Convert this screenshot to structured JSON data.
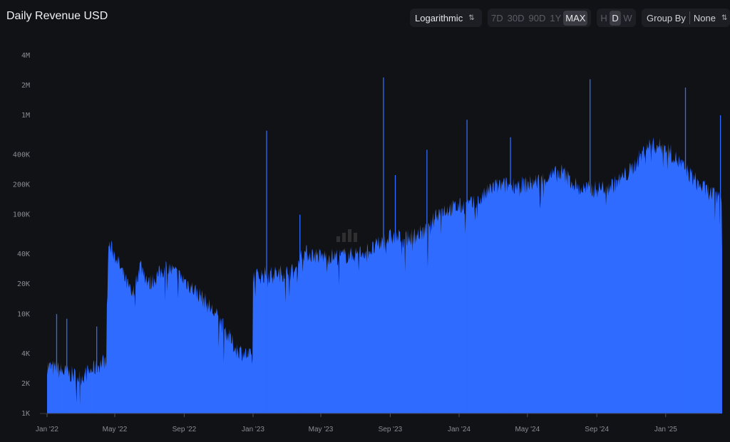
{
  "header": {
    "title": "Daily Revenue USD"
  },
  "controls": {
    "scale": {
      "value": "Logarithmic",
      "icon": "updown-chevron-icon"
    },
    "ranges": [
      "7D",
      "30D",
      "90D",
      "1Y",
      "MAX"
    ],
    "active_range": "MAX",
    "granularity": [
      "H",
      "D",
      "W"
    ],
    "active_granularity": "D",
    "group_by": {
      "label": "Group By",
      "value": "None",
      "icon": "updown-chevron-icon"
    }
  },
  "watermark": "Token Terminal",
  "colors": {
    "background": "#111216",
    "bar": "#2f6bff"
  },
  "chart_data": {
    "type": "area",
    "title": "Daily Revenue USD",
    "y_scale": "log",
    "ylim": [
      1000,
      4000000
    ],
    "y_ticks": [
      "4M",
      "2M",
      "1M",
      "400K",
      "200K",
      "100K",
      "40K",
      "20K",
      "10K",
      "4K",
      "2K",
      "1K"
    ],
    "y_tick_values": [
      4000000,
      2000000,
      1000000,
      400000,
      200000,
      100000,
      40000,
      20000,
      10000,
      4000,
      2000,
      1000
    ],
    "x_ticks": [
      "Jan '22",
      "May '22",
      "Sep '22",
      "Jan '23",
      "May '23",
      "Sep '23",
      "Jan '24",
      "May '24",
      "Sep '24",
      "Jan '25"
    ],
    "x_tick_dates": [
      "2022-01-01",
      "2022-05-01",
      "2022-09-01",
      "2023-01-01",
      "2023-05-01",
      "2023-09-01",
      "2024-01-01",
      "2024-05-01",
      "2024-09-01",
      "2025-01-01"
    ],
    "xlim": [
      "2022-01-01",
      "2025-04-11"
    ],
    "grid": false,
    "series": [
      {
        "values_approx": [
          [
            "2022-01-01",
            3000
          ],
          [
            "2022-02-01",
            2600
          ],
          [
            "2022-03-01",
            2300
          ],
          [
            "2022-04-01",
            3000
          ],
          [
            "2022-04-15",
            3500
          ],
          [
            "2022-04-20",
            50000
          ],
          [
            "2022-05-01",
            40000
          ],
          [
            "2022-06-01",
            15000
          ],
          [
            "2022-06-15",
            32000
          ],
          [
            "2022-07-01",
            20000
          ],
          [
            "2022-08-01",
            30000
          ],
          [
            "2022-09-01",
            22000
          ],
          [
            "2022-10-01",
            15000
          ],
          [
            "2022-11-01",
            9000
          ],
          [
            "2022-12-01",
            4500
          ],
          [
            "2022-12-31",
            3600
          ],
          [
            "2023-01-01",
            24000
          ],
          [
            "2023-02-01",
            25000
          ],
          [
            "2023-03-20",
            27000
          ],
          [
            "2023-03-25",
            42000
          ],
          [
            "2023-05-01",
            38000
          ],
          [
            "2023-06-01",
            38000
          ],
          [
            "2023-07-01",
            40000
          ],
          [
            "2023-08-01",
            45000
          ],
          [
            "2023-09-01",
            60000
          ],
          [
            "2023-10-01",
            58000
          ],
          [
            "2023-11-10",
            70000
          ],
          [
            "2023-11-20",
            100000
          ],
          [
            "2023-12-01",
            110000
          ],
          [
            "2024-01-01",
            120000
          ],
          [
            "2024-02-01",
            130000
          ],
          [
            "2024-03-01",
            190000
          ],
          [
            "2024-04-01",
            200000
          ],
          [
            "2024-05-01",
            200000
          ],
          [
            "2024-06-01",
            230000
          ],
          [
            "2024-07-01",
            270000
          ],
          [
            "2024-08-01",
            180000
          ],
          [
            "2024-09-01",
            180000
          ],
          [
            "2024-10-01",
            200000
          ],
          [
            "2024-11-01",
            280000
          ],
          [
            "2024-12-01",
            500000
          ],
          [
            "2025-01-01",
            480000
          ],
          [
            "2025-02-01",
            300000
          ],
          [
            "2025-03-01",
            200000
          ],
          [
            "2025-04-01",
            150000
          ],
          [
            "2025-04-10",
            140000
          ],
          [
            "2025-04-11",
            42000
          ]
        ],
        "spikes": [
          [
            "2022-01-18",
            10000
          ],
          [
            "2022-02-05",
            9000
          ],
          [
            "2022-03-30",
            7500
          ],
          [
            "2023-01-25",
            700000
          ],
          [
            "2023-03-25",
            100000
          ],
          [
            "2023-08-20",
            2400000
          ],
          [
            "2023-09-10",
            250000
          ],
          [
            "2023-11-05",
            450000
          ],
          [
            "2024-01-15",
            900000
          ],
          [
            "2024-04-01",
            600000
          ],
          [
            "2024-08-20",
            2300000
          ],
          [
            "2025-02-05",
            1900000
          ],
          [
            "2025-04-08",
            1000000
          ]
        ]
      }
    ]
  }
}
